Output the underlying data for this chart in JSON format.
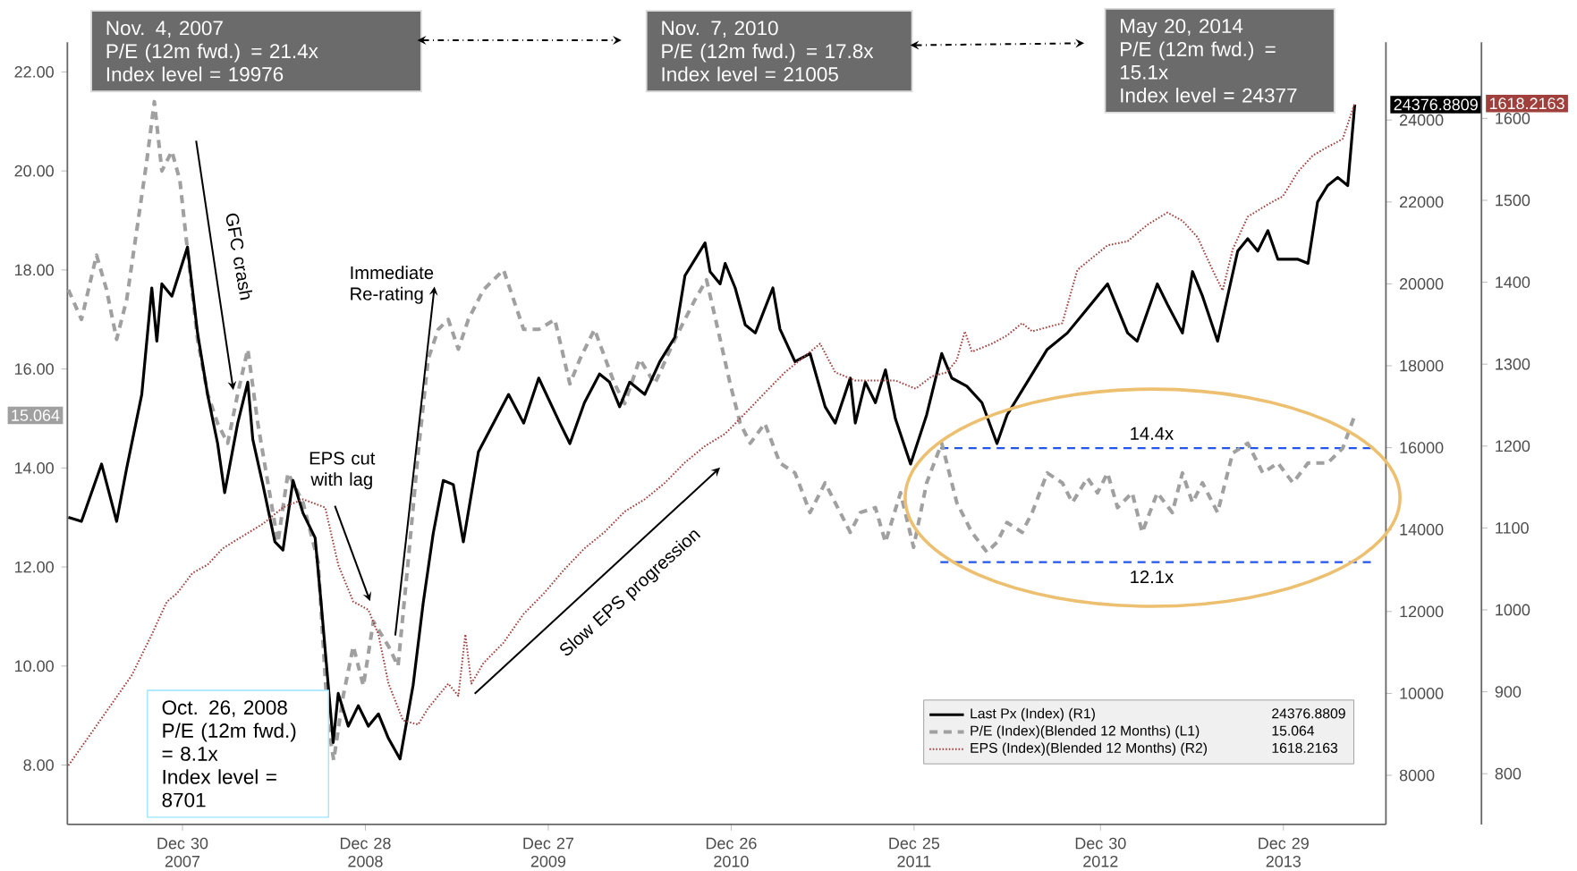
{
  "chart_data": {
    "type": "line",
    "xlim": [
      "2007-05-15",
      "2014-07-21"
    ],
    "xticks": [
      {
        "value": "2007-12-30",
        "label": "Dec 30 2007"
      },
      {
        "value": "2008-12-28",
        "label": "Dec 28 2008"
      },
      {
        "value": "2009-12-27",
        "label": "Dec 27 2009"
      },
      {
        "value": "2010-12-26",
        "label": "Dec 26 2010"
      },
      {
        "value": "2011-12-25",
        "label": "Dec 25 2011"
      },
      {
        "value": "2012-12-30",
        "label": "Dec 30 2012"
      },
      {
        "value": "2013-12-29",
        "label": "Dec 29 2013"
      }
    ],
    "ylim": [
      6.8,
      22.6
    ],
    "yticks": [
      {
        "value": 8,
        "label": "8.00"
      },
      {
        "value": 10,
        "label": "10.00"
      },
      {
        "value": 12,
        "label": "12.00"
      },
      {
        "value": 14,
        "label": "14.00"
      },
      {
        "value": 16,
        "label": "16.00"
      },
      {
        "value": 18,
        "label": "18.00"
      },
      {
        "value": 20,
        "label": "20.00"
      },
      {
        "value": 22,
        "label": "22.00"
      }
    ],
    "y2lim": [
      6800,
      25900
    ],
    "y2ticks": [
      8000,
      10000,
      12000,
      14000,
      16000,
      18000,
      20000,
      22000,
      24000
    ],
    "y3lim": [
      738,
      1693
    ],
    "y3ticks": [
      800,
      900,
      1000,
      1100,
      1200,
      1300,
      1400,
      1500,
      1600
    ],
    "legend": "bottom right",
    "series": [
      {
        "name": "Last Px (Index) (R1)",
        "color": "#000000",
        "axis": "y2",
        "line_style": "solid",
        "x": [
          "2007-05-17",
          "2007-06-12",
          "2007-07-22",
          "2007-08-21",
          "2007-09-10",
          "2007-10-10",
          "2007-10-30",
          "2007-11-09",
          "2007-11-19",
          "2007-12-09",
          "2008-01-09",
          "2008-01-29",
          "2008-02-18",
          "2008-03-09",
          "2008-03-23",
          "2008-04-18",
          "2008-05-08",
          "2008-05-18",
          "2008-06-07",
          "2008-07-01",
          "2008-07-17",
          "2008-08-06",
          "2008-08-26",
          "2008-09-19",
          "2008-10-01",
          "2008-10-25",
          "2008-11-04",
          "2008-11-24",
          "2008-12-14",
          "2009-01-03",
          "2009-01-23",
          "2009-02-12",
          "2009-03-07",
          "2009-04-02",
          "2009-04-22",
          "2009-05-12",
          "2009-06-01",
          "2009-06-21",
          "2009-07-11",
          "2009-08-10",
          "2009-09-09",
          "2009-10-09",
          "2009-11-08",
          "2009-12-08",
          "2010-01-19",
          "2010-02-08",
          "2010-03-09",
          "2010-04-08",
          "2010-04-28",
          "2010-05-18",
          "2010-06-07",
          "2010-07-07",
          "2010-08-06",
          "2010-09-05",
          "2010-09-25",
          "2010-11-04",
          "2010-11-14",
          "2010-12-04",
          "2010-12-14",
          "2011-01-03",
          "2011-01-23",
          "2011-02-12",
          "2011-03-19",
          "2011-04-02",
          "2011-05-02",
          "2011-06-01",
          "2011-07-01",
          "2011-07-21",
          "2011-08-20",
          "2011-08-30",
          "2011-09-19",
          "2011-10-09",
          "2011-10-29",
          "2011-11-18",
          "2011-12-18",
          "2012-01-19",
          "2012-02-18",
          "2012-03-09",
          "2012-04-08",
          "2012-05-08",
          "2012-06-07",
          "2012-06-27",
          "2012-08-06",
          "2012-09-15",
          "2012-10-25",
          "2012-12-04",
          "2013-01-13",
          "2013-02-22",
          "2013-03-13",
          "2013-04-22",
          "2013-05-12",
          "2013-06-11",
          "2013-07-01",
          "2013-07-21",
          "2013-08-20",
          "2013-09-29",
          "2013-10-19",
          "2013-11-08",
          "2013-11-28",
          "2013-12-18",
          "2014-01-27",
          "2014-02-16",
          "2014-03-07",
          "2014-03-27",
          "2014-04-16",
          "2014-05-06",
          "2014-05-20"
        ],
        "values": [
          14300,
          14200,
          15600,
          14200,
          15500,
          17300,
          19900,
          18600,
          20000,
          19700,
          20900,
          18800,
          17300,
          16100,
          14900,
          16600,
          17600,
          16200,
          15100,
          13700,
          13500,
          15200,
          14400,
          13800,
          12200,
          8800,
          10000,
          9200,
          9700,
          9200,
          9500,
          8900,
          8400,
          10200,
          12200,
          13900,
          15200,
          15100,
          13700,
          15900,
          16600,
          17300,
          16600,
          17700,
          16600,
          16100,
          17100,
          17800,
          17600,
          17000,
          17600,
          17300,
          18100,
          18700,
          20200,
          21000,
          20300,
          20000,
          20500,
          19900,
          19000,
          18800,
          19900,
          18900,
          18100,
          18300,
          17000,
          16600,
          17700,
          16600,
          17600,
          17100,
          17900,
          16700,
          15600,
          16800,
          18300,
          17700,
          17500,
          17100,
          16100,
          16800,
          17600,
          18400,
          18800,
          19400,
          20000,
          18800,
          18600,
          20000,
          19500,
          18800,
          20300,
          19700,
          18600,
          20800,
          21100,
          20800,
          21300,
          20600,
          20600,
          20500,
          22000,
          22400,
          22600,
          22400,
          24376.8809
        ]
      },
      {
        "name": "P/E (Index)(Blended 12 Months) (L1)",
        "color": "#a0a0a0",
        "axis": "y",
        "line_style": "dashed",
        "x": [
          "2007-05-17",
          "2007-06-12",
          "2007-07-12",
          "2007-08-01",
          "2007-08-21",
          "2007-09-10",
          "2007-09-30",
          "2007-10-20",
          "2007-11-04",
          "2007-11-19",
          "2007-12-09",
          "2007-12-25",
          "2008-01-09",
          "2008-01-29",
          "2008-02-18",
          "2008-03-09",
          "2008-03-29",
          "2008-04-18",
          "2008-05-08",
          "2008-05-28",
          "2008-06-17",
          "2008-07-07",
          "2008-07-27",
          "2008-08-26",
          "2008-09-25",
          "2008-10-15",
          "2008-10-26",
          "2008-11-14",
          "2008-12-04",
          "2008-12-24",
          "2009-01-13",
          "2009-02-12",
          "2009-03-03",
          "2009-03-23",
          "2009-04-12",
          "2009-05-02",
          "2009-05-22",
          "2009-06-11",
          "2009-07-01",
          "2009-07-21",
          "2009-08-20",
          "2009-09-29",
          "2009-10-19",
          "2009-11-08",
          "2009-12-08",
          "2010-01-09",
          "2010-02-08",
          "2010-02-28",
          "2010-03-29",
          "2010-05-08",
          "2010-05-28",
          "2010-06-27",
          "2010-07-27",
          "2010-09-05",
          "2010-10-15",
          "2010-11-07",
          "2010-12-04",
          "2010-12-24",
          "2011-01-13",
          "2011-02-02",
          "2011-03-03",
          "2011-04-02",
          "2011-05-02",
          "2011-06-01",
          "2011-07-01",
          "2011-07-31",
          "2011-08-20",
          "2011-09-09",
          "2011-10-09",
          "2011-10-29",
          "2011-11-28",
          "2011-12-24",
          "2012-01-19",
          "2012-02-18",
          "2012-03-19",
          "2012-04-18",
          "2012-05-18",
          "2012-06-07",
          "2012-06-27",
          "2012-07-27",
          "2012-08-16",
          "2012-09-15",
          "2012-10-15",
          "2012-11-04",
          "2012-12-04",
          "2012-12-24",
          "2013-01-13",
          "2013-02-02",
          "2013-03-03",
          "2013-03-23",
          "2013-04-22",
          "2013-05-22",
          "2013-06-11",
          "2013-07-01",
          "2013-07-21",
          "2013-08-20",
          "2013-09-19",
          "2013-10-19",
          "2013-11-18",
          "2013-12-18",
          "2014-01-17",
          "2014-02-16",
          "2014-03-27",
          "2014-04-26",
          "2014-05-20"
        ],
        "values": [
          17.6,
          17.0,
          18.3,
          17.6,
          16.6,
          17.4,
          18.8,
          20.2,
          21.4,
          20.0,
          20.4,
          19.8,
          18.4,
          16.6,
          15.5,
          14.9,
          14.5,
          15.5,
          16.4,
          14.9,
          13.7,
          12.5,
          13.9,
          13.3,
          12.1,
          8.8,
          8.1,
          9.4,
          10.4,
          9.6,
          10.9,
          10.4,
          10.0,
          12.1,
          14.3,
          16.2,
          16.8,
          17.0,
          16.4,
          17.0,
          17.6,
          18.0,
          17.4,
          16.8,
          16.8,
          17.0,
          15.7,
          16.2,
          16.8,
          15.7,
          15.3,
          16.2,
          15.7,
          16.6,
          17.4,
          17.8,
          16.6,
          15.7,
          14.9,
          14.5,
          14.9,
          14.1,
          13.9,
          13.1,
          13.7,
          13.1,
          12.7,
          13.1,
          13.2,
          12.5,
          13.5,
          12.4,
          13.7,
          14.5,
          13.3,
          12.7,
          12.3,
          12.5,
          12.9,
          12.7,
          13.1,
          13.9,
          13.7,
          13.3,
          13.8,
          13.5,
          13.9,
          13.2,
          13.5,
          12.7,
          13.5,
          13.1,
          13.9,
          13.3,
          13.7,
          13.1,
          14.3,
          14.5,
          13.9,
          14.1,
          13.7,
          14.1,
          14.1,
          14.4,
          15.064
        ]
      },
      {
        "name": "EPS (Index)(Blended 12 Months) (R2)",
        "color": "#a0403c",
        "axis": "y3",
        "line_style": "dotted",
        "x": [
          "2007-05-17",
          "2007-07-02",
          "2007-08-11",
          "2007-09-20",
          "2007-10-30",
          "2007-11-29",
          "2007-12-19",
          "2008-01-19",
          "2008-02-18",
          "2008-03-19",
          "2008-04-28",
          "2008-06-07",
          "2008-07-17",
          "2008-08-26",
          "2008-10-09",
          "2008-11-04",
          "2008-12-04",
          "2009-01-03",
          "2009-01-23",
          "2009-02-12",
          "2009-03-13",
          "2009-04-12",
          "2009-05-02",
          "2009-06-11",
          "2009-07-01",
          "2009-07-15",
          "2009-07-27",
          "2009-08-20",
          "2009-09-29",
          "2009-11-08",
          "2009-12-18",
          "2010-01-29",
          "2010-03-09",
          "2010-04-18",
          "2010-05-28",
          "2010-07-07",
          "2010-08-16",
          "2010-09-25",
          "2010-11-04",
          "2010-12-14",
          "2011-01-23",
          "2011-03-03",
          "2011-04-12",
          "2011-05-22",
          "2011-06-21",
          "2011-07-21",
          "2011-08-30",
          "2011-10-09",
          "2011-11-18",
          "2011-12-28",
          "2012-01-29",
          "2012-02-28",
          "2012-03-19",
          "2012-04-04",
          "2012-04-18",
          "2012-05-28",
          "2012-06-27",
          "2012-07-27",
          "2012-08-16",
          "2012-09-15",
          "2012-10-15",
          "2012-11-14",
          "2012-12-14",
          "2013-01-13",
          "2013-02-22",
          "2013-04-02",
          "2013-05-12",
          "2013-06-11",
          "2013-07-11",
          "2013-08-10",
          "2013-08-30",
          "2013-09-19",
          "2013-10-19",
          "2013-11-28",
          "2013-12-28",
          "2014-01-27",
          "2014-02-26",
          "2014-03-27",
          "2014-04-26",
          "2014-05-20"
        ],
        "values": [
          810,
          850,
          885,
          920,
          970,
          1010,
          1020,
          1045,
          1055,
          1075,
          1090,
          1105,
          1125,
          1135,
          1125,
          1055,
          1010,
          1000,
          970,
          910,
          865,
          860,
          880,
          910,
          895,
          970,
          910,
          935,
          960,
          995,
          1020,
          1050,
          1075,
          1095,
          1120,
          1135,
          1155,
          1180,
          1200,
          1215,
          1240,
          1265,
          1290,
          1310,
          1325,
          1290,
          1280,
          1280,
          1280,
          1270,
          1285,
          1290,
          1305,
          1340,
          1315,
          1325,
          1335,
          1350,
          1340,
          1345,
          1350,
          1415,
          1430,
          1445,
          1450,
          1470,
          1485,
          1475,
          1455,
          1415,
          1390,
          1440,
          1480,
          1495,
          1505,
          1535,
          1555,
          1565,
          1575,
          1618.2163
        ]
      }
    ],
    "ref_lines": [
      {
        "axis": "y",
        "value": 14.4,
        "label": "14.4x",
        "color": "#2255ee",
        "line_style": "dashed"
      },
      {
        "axis": "y",
        "value": 12.1,
        "label": "12.1x",
        "color": "#2255ee",
        "line_style": "dashed"
      }
    ],
    "annotations": [
      "Nov. 4, 2007",
      "P/E (12m fwd.) = 21.4x",
      "Index level = 19976",
      "Nov. 7, 2010",
      "P/E (12m fwd.) = 17.8x",
      "Index level = 21005",
      "May 20, 2014",
      "P/E (12m fwd.) = 15.1x",
      "Index level = 24377",
      "Oct. 26, 2008",
      "P/E (12m fwd.) = 8.1x",
      "Index level = 8701",
      "GFC crash",
      "Immediate Re-rating",
      "EPS cut with lag",
      "Slow EPS progression",
      "24376.8809",
      "15.064",
      "1618.2163"
    ]
  }
}
